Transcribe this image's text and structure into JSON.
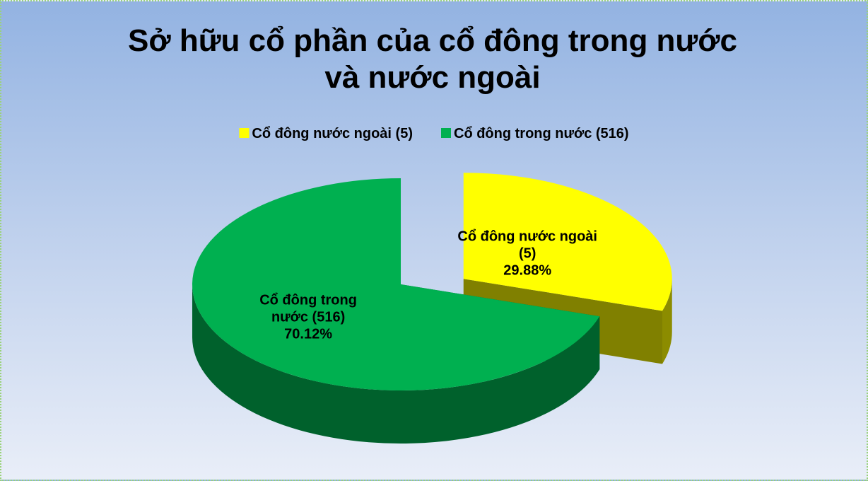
{
  "chart_data": {
    "type": "pie",
    "title": "Sở hữu cổ phần của cổ đông trong nước và nước ngoài",
    "categories": [
      "Cổ đông nước ngoài (5)",
      "Cổ đông trong nước (516)"
    ],
    "values": [
      29.88,
      70.12
    ],
    "value_labels": [
      "29.88%",
      "70.12%"
    ],
    "colors": [
      "#ffff00",
      "#00b050"
    ],
    "legend": "top"
  }
}
